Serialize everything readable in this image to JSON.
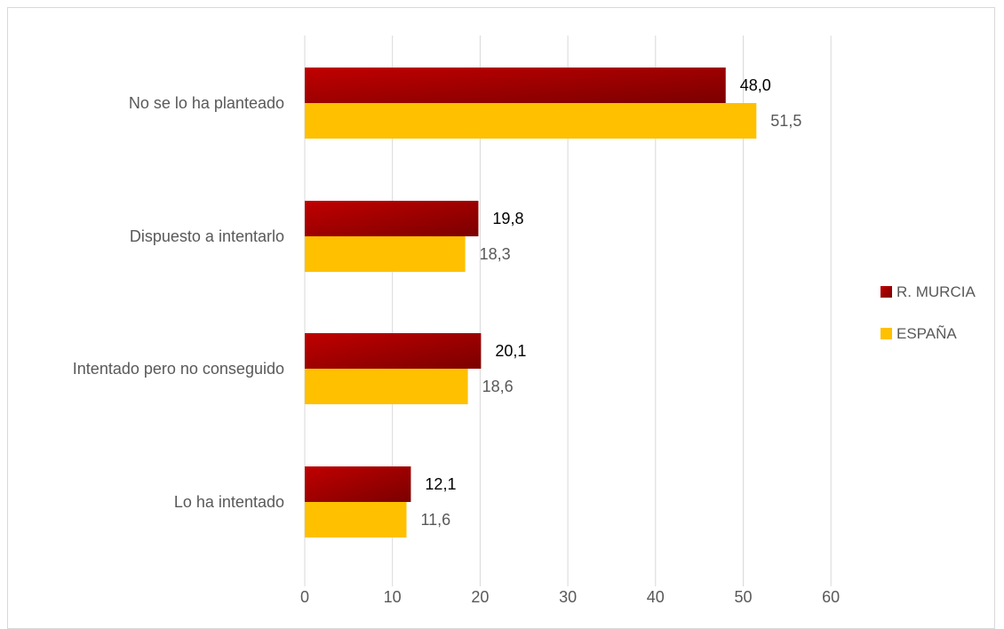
{
  "chart_data": {
    "type": "bar",
    "orientation": "horizontal",
    "title": "",
    "xlabel": "",
    "ylabel": "",
    "categories": [
      "Lo ha intentado",
      "Intentado pero no conseguido",
      "Dispuesto a intentarlo",
      "No se lo ha planteado"
    ],
    "series": [
      {
        "name": "R. MURCIA",
        "values": [
          12.1,
          20.1,
          19.8,
          48.0
        ],
        "value_labels": [
          "12,1",
          "20,1",
          "19,8",
          "48,0"
        ],
        "color": "#C00000",
        "color_dark": "#7B0000",
        "label_color": "#000000"
      },
      {
        "name": "ESPAÑA",
        "values": [
          11.6,
          18.6,
          18.3,
          51.5
        ],
        "value_labels": [
          "11,6",
          "18,6",
          "18,3",
          "51,5"
        ],
        "color": "#FFC000",
        "label_color": "#595959"
      }
    ],
    "xlim": [
      0,
      60
    ],
    "xticks": [
      0,
      10,
      20,
      30,
      40,
      50,
      60
    ],
    "xtick_labels": [
      "0",
      "10",
      "20",
      "30",
      "40",
      "50",
      "60"
    ],
    "grid": true,
    "gridline_color": "#d9d9d9",
    "legend_position": "right"
  }
}
